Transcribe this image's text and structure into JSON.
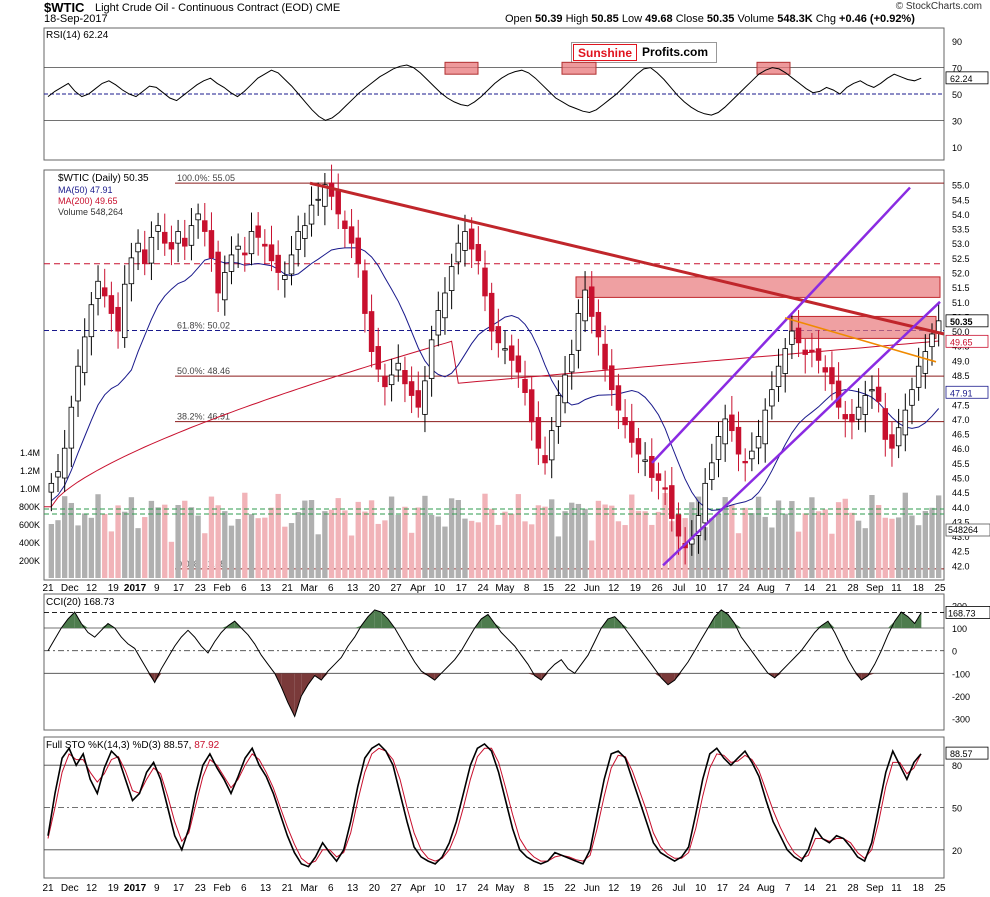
{
  "header": {
    "symbol": "$WTIC",
    "description": "Light Crude Oil - Continuous Contract (EOD)",
    "exchange": "CME",
    "date": "18-Sep-2017",
    "open_label": "Open",
    "open": "50.39",
    "high_label": "High",
    "high": "50.85",
    "low_label": "Low",
    "low": "49.68",
    "close_label": "Close",
    "close": "50.35",
    "volume_label": "Volume",
    "volume": "548.3K",
    "chg_label": "Chg",
    "chg": "+0.46 (+0.92%)",
    "credit": "© StockCharts.com"
  },
  "logo": {
    "part1": "Sunshine",
    "part2": "Profits.com"
  },
  "colors": {
    "up": "#000000",
    "down": "#c8102e",
    "ma50": "#1a1a8c",
    "ma200": "#c8102e",
    "trend_red": "#c0262b",
    "channel": "#8a2be2",
    "orange": "#f08a00",
    "zone": "#e8777a",
    "osc_pos": "#4e7c4e",
    "osc_neg": "#7a3a3a",
    "green_dash": "#2e9b4e"
  },
  "chart_data": [
    {
      "type": "line",
      "panel": "RSI",
      "title": "RSI(14) 62.24",
      "current": "62.24",
      "ylim": [
        0,
        100
      ],
      "y_ticks": [
        "90",
        "70",
        "50",
        "30",
        "10"
      ],
      "levels": [
        70,
        50,
        30
      ],
      "values": [
        48,
        52,
        55,
        58,
        52,
        48,
        50,
        54,
        58,
        60,
        57,
        53,
        50,
        48,
        52,
        56,
        55,
        51,
        47,
        45,
        49,
        53,
        57,
        60,
        62,
        58,
        55,
        51,
        48,
        52,
        57,
        62,
        65,
        68,
        66,
        61,
        56,
        50,
        44,
        38,
        33,
        30,
        32,
        36,
        41,
        46,
        51,
        55,
        59,
        63,
        66,
        69,
        71,
        72,
        70,
        66,
        61,
        56,
        51,
        47,
        44,
        42,
        41,
        44,
        48,
        53,
        58,
        62,
        65,
        67,
        68,
        66,
        62,
        57,
        52,
        47,
        44,
        41,
        39,
        37,
        36,
        38,
        42,
        46,
        50,
        55,
        60,
        65,
        69,
        70,
        66,
        61,
        55,
        49,
        44,
        40,
        37,
        35,
        34,
        36,
        40,
        45,
        50,
        55,
        60,
        65,
        68,
        70,
        69,
        66,
        62,
        58,
        54,
        51,
        52,
        55,
        53,
        50,
        55,
        58,
        60,
        57,
        55,
        58,
        62,
        65,
        63,
        61,
        60,
        62
      ]
    },
    {
      "type": "candlestick",
      "panel": "price",
      "title": "$WTIC (Daily) 50.35",
      "legend": [
        "MA(50) 47.91",
        "MA(200) 49.65",
        "Volume 548,264"
      ],
      "ylim": [
        41.5,
        55.5
      ],
      "y_ticks": [
        "55.0",
        "54.5",
        "54.0",
        "53.5",
        "53.0",
        "52.5",
        "52.0",
        "51.5",
        "51.0",
        "50.5",
        "50.0",
        "49.5",
        "49.0",
        "48.5",
        "48.0",
        "47.5",
        "47.0",
        "46.5",
        "46.0",
        "45.5",
        "45.0",
        "44.5",
        "44.0",
        "43.5",
        "43.0",
        "42.5",
        "42.0"
      ],
      "price_labels": {
        "close": "50.35",
        "ma200": "49.65",
        "ma50": "47.91"
      },
      "fib_levels": [
        {
          "label": "100.0%: 55.05",
          "value": 55.05
        },
        {
          "label": "61.8%: 50.02",
          "value": 50.02
        },
        {
          "label": "50.0%: 48.46",
          "value": 48.46
        },
        {
          "label": "38.2%: 46.91",
          "value": 46.91
        },
        {
          "label": "0.0%: 41.88",
          "value": 41.88
        }
      ],
      "volume_ticks": [
        "1.4M",
        "1.2M",
        "1.0M",
        "800K",
        "600K",
        "400K",
        "200K"
      ],
      "volume_label": "548264",
      "x_tick_labels": [
        "21",
        "Dec",
        "12",
        "19",
        "2017",
        "9",
        "17",
        "23",
        "Feb",
        "6",
        "13",
        "21",
        "Mar",
        "6",
        "13",
        "20",
        "27",
        "Apr",
        "10",
        "17",
        "24",
        "May",
        "8",
        "15",
        "22",
        "Jun",
        "12",
        "19",
        "26",
        "Jul",
        "10",
        "17",
        "24",
        "Aug",
        "7",
        "14",
        "21",
        "28",
        "Sep",
        "11",
        "18",
        "25"
      ],
      "closes": [
        44.8,
        45.2,
        46.0,
        47.4,
        48.8,
        49.8,
        50.9,
        51.7,
        51.2,
        50.6,
        50.0,
        51.6,
        52.5,
        53.0,
        52.3,
        53.2,
        53.6,
        53.0,
        52.8,
        53.4,
        52.9,
        53.6,
        54.0,
        53.4,
        52.5,
        51.3,
        52.0,
        52.6,
        52.9,
        52.6,
        53.4,
        53.2,
        52.9,
        52.4,
        52.0,
        51.9,
        52.6,
        53.4,
        53.6,
        54.3,
        54.5,
        55.0,
        54.6,
        54.0,
        53.5,
        53.0,
        52.3,
        50.6,
        49.3,
        48.7,
        48.1,
        48.5,
        48.9,
        48.2,
        47.8,
        47.4,
        48.3,
        49.7,
        50.7,
        51.3,
        52.2,
        53.0,
        53.4,
        52.8,
        52.4,
        51.2,
        50.0,
        49.6,
        49.4,
        49.0,
        48.6,
        47.9,
        46.9,
        46.0,
        45.5,
        46.6,
        47.8,
        48.5,
        49.2,
        50.6,
        51.4,
        50.5,
        49.8,
        48.7,
        48.0,
        47.3,
        46.8,
        46.2,
        45.8,
        45.6,
        45.0,
        44.9,
        44.6,
        43.6,
        43.0,
        42.6,
        42.9,
        43.7,
        44.8,
        45.5,
        46.4,
        47.0,
        46.6,
        45.8,
        45.5,
        45.9,
        46.4,
        47.3,
        48.0,
        48.8,
        49.4,
        50.0,
        49.6,
        49.2,
        49.3,
        49.0,
        48.6,
        48.2,
        47.4,
        47.0,
        46.9,
        47.4,
        47.8,
        48.0,
        47.6,
        46.3,
        46.0,
        46.7,
        47.3,
        48.0,
        48.8,
        49.3,
        49.9,
        50.35
      ]
    },
    {
      "type": "line",
      "panel": "CCI",
      "title": "CCI(20) 168.73",
      "current": "168.73",
      "ylim": [
        -350,
        250
      ],
      "y_ticks": [
        "200",
        "100",
        "0",
        "-100",
        "-200",
        "-300"
      ],
      "levels": [
        100,
        0,
        -100
      ],
      "values": [
        0,
        50,
        100,
        140,
        170,
        120,
        80,
        60,
        90,
        120,
        100,
        60,
        30,
        10,
        -40,
        -90,
        -140,
        -80,
        -30,
        20,
        60,
        90,
        60,
        20,
        -10,
        40,
        80,
        110,
        130,
        100,
        70,
        30,
        -20,
        -60,
        -100,
        -160,
        -230,
        -290,
        -200,
        -150,
        -110,
        -130,
        -90,
        -60,
        -30,
        20,
        60,
        110,
        150,
        180,
        170,
        140,
        100,
        50,
        0,
        -50,
        -90,
        -110,
        -130,
        -100,
        -70,
        -40,
        0,
        50,
        100,
        140,
        160,
        120,
        80,
        50,
        20,
        -20,
        -60,
        -110,
        -130,
        -90,
        -60,
        -40,
        -80,
        -100,
        -60,
        -20,
        40,
        100,
        140,
        150,
        120,
        80,
        40,
        0,
        -40,
        -80,
        -120,
        -150,
        -130,
        -90,
        -50,
        0,
        50,
        100,
        150,
        180,
        160,
        120,
        60,
        20,
        -20,
        -60,
        -100,
        -120,
        -90,
        -60,
        -30,
        0,
        40,
        80,
        110,
        130,
        80,
        20,
        -40,
        -90,
        -130,
        -110,
        -60,
        0,
        70,
        130,
        170,
        150,
        120,
        168
      ]
    },
    {
      "type": "line",
      "panel": "STO",
      "title": "Full STO %K(14,3) %D(3) 88.57, 87.92",
      "current_k": "88.57",
      "current_d": "87.92",
      "ylim": [
        0,
        100
      ],
      "y_ticks": [
        "80",
        "50",
        "20"
      ],
      "levels": [
        80,
        50,
        20
      ],
      "k_values": [
        30,
        60,
        85,
        92,
        80,
        88,
        70,
        60,
        78,
        90,
        85,
        70,
        55,
        60,
        75,
        82,
        70,
        50,
        30,
        20,
        35,
        60,
        80,
        88,
        78,
        70,
        60,
        72,
        85,
        92,
        80,
        72,
        60,
        45,
        30,
        18,
        10,
        8,
        15,
        25,
        18,
        12,
        20,
        40,
        65,
        85,
        92,
        95,
        90,
        80,
        60,
        40,
        22,
        15,
        12,
        10,
        15,
        25,
        40,
        60,
        80,
        92,
        95,
        90,
        75,
        55,
        35,
        20,
        15,
        12,
        10,
        12,
        18,
        16,
        14,
        12,
        10,
        20,
        45,
        70,
        88,
        90,
        85,
        70,
        55,
        40,
        25,
        18,
        15,
        12,
        15,
        22,
        45,
        70,
        88,
        92,
        85,
        80,
        85,
        90,
        82,
        72,
        55,
        40,
        30,
        20,
        15,
        12,
        20,
        35,
        28,
        25,
        30,
        28,
        22,
        15,
        12,
        25,
        50,
        75,
        90,
        80,
        70,
        82,
        88
      ]
    },
    {
      "line2_values_d": [
        28,
        50,
        75,
        88,
        84,
        84,
        75,
        68,
        74,
        84,
        86,
        76,
        62,
        60,
        70,
        78,
        74,
        58,
        40,
        26,
        32,
        52,
        72,
        84,
        80,
        72,
        64,
        70,
        80,
        88,
        84,
        75,
        64,
        50,
        36,
        24,
        14,
        10,
        12,
        20,
        20,
        15,
        18,
        32,
        55,
        75,
        88,
        92,
        90,
        84,
        70,
        50,
        32,
        20,
        14,
        12,
        14,
        20,
        32,
        50,
        70,
        86,
        92,
        92,
        82,
        64,
        45,
        28,
        20,
        15,
        12,
        12,
        15,
        16,
        15,
        13,
        12,
        16,
        35,
        58,
        78,
        87,
        86,
        76,
        62,
        48,
        32,
        22,
        17,
        14,
        14,
        18,
        35,
        58,
        78,
        88,
        87,
        82,
        83,
        87,
        84,
        76,
        62,
        48,
        36,
        26,
        18,
        14,
        16,
        28,
        28,
        26,
        28,
        28,
        25,
        18,
        14,
        20,
        40,
        65,
        82,
        82,
        74,
        78,
        87.92
      ]
    }
  ]
}
